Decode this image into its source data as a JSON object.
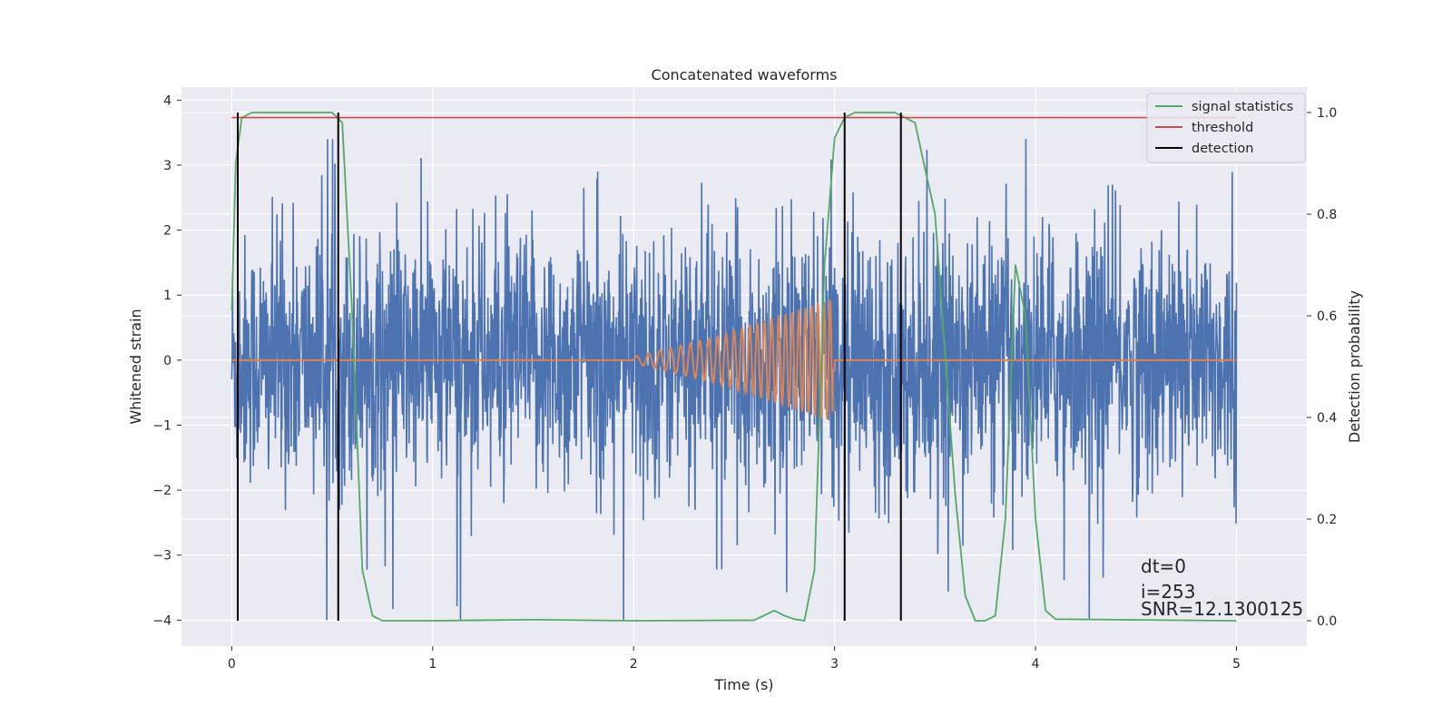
{
  "chart_data": {
    "type": "line",
    "title": "Concatenated waveforms",
    "xlabel": "Time (s)",
    "ylabel": "Whitened strain",
    "y2label": "Detection probability",
    "xlim": [
      -0.25,
      5.35
    ],
    "ylim": [
      -4.4,
      4.2
    ],
    "y2lim": [
      -0.05,
      1.05
    ],
    "xticks": [
      0,
      1,
      2,
      3,
      4,
      5
    ],
    "yticks": [
      -4,
      -3,
      -2,
      -1,
      0,
      1,
      2,
      3,
      4
    ],
    "y2ticks": [
      0.0,
      0.2,
      0.4,
      0.6,
      0.8,
      1.0
    ],
    "xtick_labels": [
      "0",
      "1",
      "2",
      "3",
      "4",
      "5"
    ],
    "ytick_labels": [
      "−4",
      "−3",
      "−2",
      "−1",
      "0",
      "1",
      "2",
      "3",
      "4"
    ],
    "y2tick_labels": [
      "0.0",
      "0.2",
      "0.4",
      "0.6",
      "0.8",
      "1.0"
    ],
    "grid": true,
    "legend": "top-right",
    "colors": {
      "strain": "#4c72b0",
      "template": "#dd8452",
      "signal": "#55a868",
      "threshold": "#c44e52",
      "detection": "#000000",
      "background": "#eaeaf2",
      "grid": "#ffffff"
    },
    "series": [
      {
        "name": "",
        "role": "whitened strain",
        "axis": "left",
        "x_range": [
          0,
          5
        ],
        "typical_amplitude": 1.5,
        "min": -4.0,
        "max": 3.4
      },
      {
        "name": "",
        "role": "template waveform",
        "axis": "left",
        "x": [
          0,
          2.0,
          2.2,
          2.4,
          2.6,
          2.8,
          3.0,
          5.0
        ],
        "envelope": [
          0,
          0.05,
          0.2,
          0.35,
          0.55,
          0.75,
          0.95,
          0
        ],
        "chirp_start": 2.0,
        "chirp_end": 3.0
      },
      {
        "name": "signal statistics",
        "axis": "right",
        "x": [
          0.0,
          0.02,
          0.05,
          0.1,
          0.5,
          0.55,
          0.6,
          0.65,
          0.7,
          0.75,
          1.0,
          1.5,
          2.0,
          2.6,
          2.7,
          2.75,
          2.8,
          2.85,
          2.9,
          2.95,
          3.0,
          3.05,
          3.1,
          3.3,
          3.4,
          3.5,
          3.6,
          3.65,
          3.7,
          3.75,
          3.8,
          3.85,
          3.9,
          3.95,
          4.0,
          4.05,
          4.1,
          5.0
        ],
        "values": [
          0.61,
          0.9,
          0.99,
          1.0,
          1.0,
          0.98,
          0.6,
          0.1,
          0.01,
          0.0,
          0.0,
          0.002,
          0.0,
          0.001,
          0.02,
          0.01,
          0.003,
          0.0,
          0.1,
          0.7,
          0.95,
          0.99,
          1.0,
          1.0,
          0.98,
          0.8,
          0.25,
          0.05,
          0.0,
          0.0,
          0.01,
          0.2,
          0.7,
          0.6,
          0.2,
          0.02,
          0.003,
          0.0
        ]
      },
      {
        "name": "threshold",
        "axis": "right",
        "x": [
          0,
          5
        ],
        "values": [
          0.99,
          0.99
        ]
      },
      {
        "name": "detection",
        "axis": "right",
        "vlines": [
          0.03,
          0.53,
          3.05,
          3.33
        ],
        "ymin": 0.0,
        "ymax": 1.0
      }
    ],
    "annotations": [
      "dt=0",
      "i=253",
      "SNR=12.1300125"
    ]
  }
}
